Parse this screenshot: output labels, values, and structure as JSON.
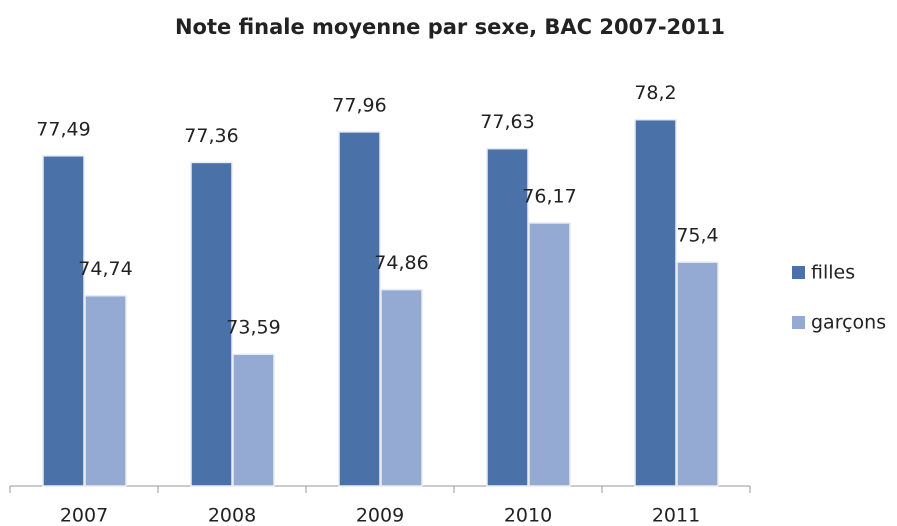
{
  "chart_data": {
    "type": "bar",
    "title": "Note finale moyenne par sexe, BAC 2007-2011",
    "categories": [
      "2007",
      "2008",
      "2009",
      "2010",
      "2011"
    ],
    "series": [
      {
        "name": "filles",
        "color": "#4a72a8",
        "values": [
          77.49,
          77.36,
          77.96,
          77.63,
          78.2
        ],
        "value_labels": [
          "77,49",
          "77,36",
          "77,96",
          "77,63",
          "78,2"
        ]
      },
      {
        "name": "garçons",
        "color": "#95aad3",
        "values": [
          74.74,
          73.59,
          74.86,
          76.17,
          75.4
        ],
        "value_labels": [
          "74,74",
          "73,59",
          "74,86",
          "76,17",
          "75,4"
        ]
      }
    ],
    "ylim": [
      71,
      79
    ],
    "legend": "right"
  }
}
